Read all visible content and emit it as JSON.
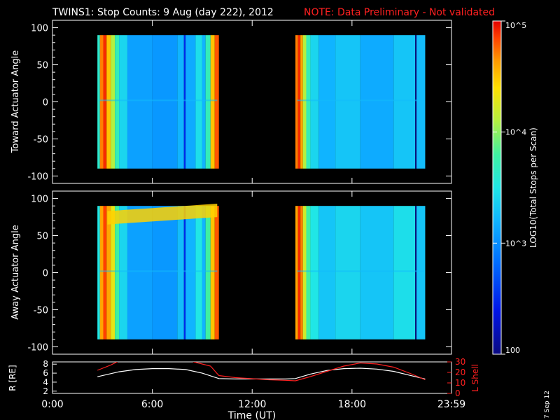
{
  "header": {
    "title": "TWINS1: Stop Counts:  9 Aug (day 222), 2012",
    "note": "NOTE: Data Preliminary - Not validated"
  },
  "colors": {
    "background": "#000000",
    "axis": "#ffffff",
    "note": "#ff2020",
    "r_line": "#ffffff",
    "l_line": "#ff2020"
  },
  "colorbar": {
    "label": "LOG10(Total Stops per Scan)",
    "ticks": [
      "10^5",
      "10^4",
      "10^3",
      "100"
    ],
    "range": [
      100,
      100000
    ],
    "scale": "log"
  },
  "footer": {
    "xlabel": "Time (UT)",
    "date_stamp": "7 Sep 12"
  },
  "chart_data": [
    {
      "type": "heatmap",
      "ylabel": "Toward Actuator Angle",
      "ylim": [
        -110,
        110
      ],
      "yticks": [
        100,
        50,
        0,
        -50,
        -100
      ],
      "xlim_hours": [
        0,
        23.98
      ],
      "data_intervals_hours": [
        [
          2.7,
          10.0
        ],
        [
          14.6,
          22.4
        ]
      ],
      "bands": [
        {
          "t": [
            2.7,
            2.85
          ],
          "log": 3.6
        },
        {
          "t": [
            2.85,
            3.05
          ],
          "log": 4.7
        },
        {
          "t": [
            3.05,
            3.25
          ],
          "log": 4.9
        },
        {
          "t": [
            3.25,
            3.5
          ],
          "log": 4.5
        },
        {
          "t": [
            3.5,
            3.75
          ],
          "log": 4.1
        },
        {
          "t": [
            3.75,
            4.0
          ],
          "log": 3.7
        },
        {
          "t": [
            4.0,
            4.5
          ],
          "log": 3.4
        },
        {
          "t": [
            4.5,
            6.0
          ],
          "log": 3.1
        },
        {
          "t": [
            6.0,
            7.5
          ],
          "log": 3.05
        },
        {
          "t": [
            7.5,
            7.9
          ],
          "log": 3.2
        },
        {
          "t": [
            7.9,
            8.0
          ],
          "log": 2.5
        },
        {
          "t": [
            8.0,
            8.6
          ],
          "log": 3.15
        },
        {
          "t": [
            8.6,
            9.0
          ],
          "log": 3.45
        },
        {
          "t": [
            9.0,
            9.2
          ],
          "log": 3.2
        },
        {
          "t": [
            9.2,
            9.5
          ],
          "log": 3.7
        },
        {
          "t": [
            9.5,
            9.75
          ],
          "log": 4.5
        },
        {
          "t": [
            9.75,
            10.0
          ],
          "log": 4.8
        },
        {
          "t": [
            14.6,
            14.75
          ],
          "log": 4.7
        },
        {
          "t": [
            14.75,
            14.9
          ],
          "log": 4.9
        },
        {
          "t": [
            14.9,
            15.05
          ],
          "log": 4.6
        },
        {
          "t": [
            15.05,
            15.25
          ],
          "log": 4.1
        },
        {
          "t": [
            15.25,
            15.5
          ],
          "log": 3.7
        },
        {
          "t": [
            15.5,
            16.0
          ],
          "log": 3.4
        },
        {
          "t": [
            16.0,
            17.0
          ],
          "log": 3.2
        },
        {
          "t": [
            17.0,
            18.5
          ],
          "log": 3.3
        },
        {
          "t": [
            18.5,
            20.5
          ],
          "log": 3.15
        },
        {
          "t": [
            20.5,
            21.8
          ],
          "log": 3.3
        },
        {
          "t": [
            21.8,
            21.88
          ],
          "log": 1.9
        },
        {
          "t": [
            21.88,
            22.4
          ],
          "log": 3.25
        }
      ]
    },
    {
      "type": "heatmap",
      "ylabel": "Away Actuator Angle",
      "ylim": [
        -110,
        110
      ],
      "yticks": [
        100,
        50,
        0,
        -50,
        -100
      ],
      "xlim_hours": [
        0,
        23.98
      ],
      "data_intervals_hours": [
        [
          2.7,
          10.0
        ],
        [
          14.6,
          22.4
        ]
      ],
      "bands": [
        {
          "t": [
            2.7,
            2.85
          ],
          "log": 3.5
        },
        {
          "t": [
            2.85,
            3.05
          ],
          "log": 4.6
        },
        {
          "t": [
            3.05,
            3.25
          ],
          "log": 4.85
        },
        {
          "t": [
            3.25,
            3.5
          ],
          "log": 4.6
        },
        {
          "t": [
            3.5,
            3.75
          ],
          "log": 4.3
        },
        {
          "t": [
            3.75,
            4.0
          ],
          "log": 3.8
        },
        {
          "t": [
            4.0,
            4.5
          ],
          "log": 3.4
        },
        {
          "t": [
            4.5,
            6.0
          ],
          "log": 3.1
        },
        {
          "t": [
            6.0,
            7.5
          ],
          "log": 3.05
        },
        {
          "t": [
            7.5,
            7.9
          ],
          "log": 3.25
        },
        {
          "t": [
            7.9,
            8.0
          ],
          "log": 2.5
        },
        {
          "t": [
            8.0,
            8.6
          ],
          "log": 3.2
        },
        {
          "t": [
            8.6,
            9.0
          ],
          "log": 3.5
        },
        {
          "t": [
            9.0,
            9.2
          ],
          "log": 3.2
        },
        {
          "t": [
            9.2,
            9.5
          ],
          "log": 3.8
        },
        {
          "t": [
            9.5,
            9.75
          ],
          "log": 4.5
        },
        {
          "t": [
            9.75,
            10.0
          ],
          "log": 4.8
        },
        {
          "t": [
            14.6,
            14.75
          ],
          "log": 4.6
        },
        {
          "t": [
            14.75,
            14.9
          ],
          "log": 4.9
        },
        {
          "t": [
            14.9,
            15.05
          ],
          "log": 4.7
        },
        {
          "t": [
            15.05,
            15.25
          ],
          "log": 4.2
        },
        {
          "t": [
            15.25,
            15.5
          ],
          "log": 3.8
        },
        {
          "t": [
            15.5,
            16.0
          ],
          "log": 3.5
        },
        {
          "t": [
            16.0,
            17.0
          ],
          "log": 3.3
        },
        {
          "t": [
            17.0,
            18.5
          ],
          "log": 3.4
        },
        {
          "t": [
            18.5,
            20.5
          ],
          "log": 3.3
        },
        {
          "t": [
            20.5,
            21.8
          ],
          "log": 3.45
        },
        {
          "t": [
            21.8,
            21.88
          ],
          "log": 1.9
        },
        {
          "t": [
            21.88,
            22.4
          ],
          "log": 3.3
        }
      ],
      "overlay": {
        "t": [
          3.3,
          9.9
        ],
        "angle_center": [
          75,
          85
        ],
        "log": 4.45
      }
    },
    {
      "type": "line",
      "xlim_hours": [
        0,
        23.98
      ],
      "xticks": [
        "0:00",
        "6:00",
        "12:00",
        "18:00",
        "23:59"
      ],
      "xtick_hours": [
        0,
        6,
        12,
        18,
        23.98
      ],
      "left_axis": {
        "label": "R [RE]",
        "ylim": [
          1.5,
          8.5
        ],
        "ticks": [
          8,
          6,
          4,
          2
        ]
      },
      "right_axis": {
        "label": "L Shell",
        "ylim": [
          0,
          30
        ],
        "ticks": [
          30,
          20,
          10,
          0
        ]
      },
      "series": [
        {
          "name": "R [RE]",
          "axis": "left",
          "x": [
            2.7,
            4,
            5,
            6,
            7,
            8,
            9,
            10,
            11,
            12,
            13,
            14,
            14.6,
            15.5,
            16.5,
            17.5,
            18.5,
            19.5,
            20.5,
            21.5,
            22.4
          ],
          "y": [
            5.2,
            6.3,
            6.8,
            7.0,
            7.0,
            6.8,
            6.0,
            4.8,
            4.7,
            4.7,
            4.7,
            4.7,
            4.8,
            5.8,
            6.6,
            7.0,
            7.1,
            6.9,
            6.4,
            5.5,
            4.7
          ]
        },
        {
          "name": "L Shell",
          "axis": "right",
          "x": [
            2.7,
            3.5,
            4.0,
            4.6,
            7.9,
            8.5,
            9.5,
            10.0,
            11,
            12,
            13,
            14,
            14.6,
            15.5,
            16.5,
            17.5,
            18.5,
            19.5,
            20.5,
            21.5,
            22.4
          ],
          "y": [
            22,
            27,
            31,
            33,
            33,
            30,
            26,
            17,
            15,
            14,
            13,
            12.5,
            12,
            16,
            21,
            26,
            29,
            28,
            25,
            19,
            13
          ]
        }
      ]
    }
  ]
}
